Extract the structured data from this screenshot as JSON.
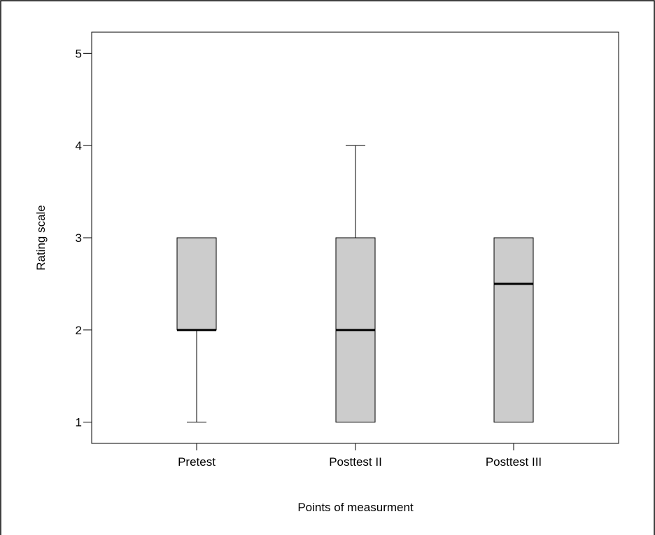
{
  "chart_data": {
    "type": "boxplot",
    "title": "",
    "xlabel": "Points of measurment",
    "ylabel": "Rating scale",
    "ylim": [
      0.77,
      5.23
    ],
    "yticks": [
      1,
      2,
      3,
      4,
      5
    ],
    "categories": [
      "Pretest",
      "Posttest II",
      "Posttest III"
    ],
    "boxes": [
      {
        "label": "Pretest",
        "whisker_low": 1,
        "q1": 2,
        "median": 2,
        "q3": 3,
        "whisker_high": 3
      },
      {
        "label": "Posttest II",
        "whisker_low": 1,
        "q1": 1,
        "median": 2,
        "q3": 3,
        "whisker_high": 4
      },
      {
        "label": "Posttest III",
        "whisker_low": 1,
        "q1": 1,
        "median": 2.5,
        "q3": 3,
        "whisker_high": 3
      }
    ],
    "box_fill": "#cccccc",
    "grid": false,
    "legend": "none"
  }
}
